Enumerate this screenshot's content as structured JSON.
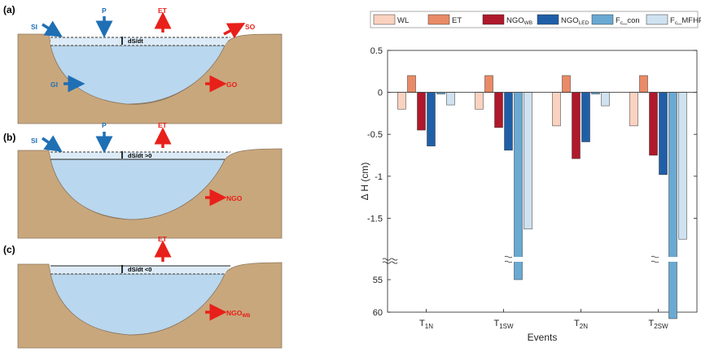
{
  "panels": [
    {
      "id": "a",
      "label": "(a)",
      "storage_label": "dS/dt",
      "fluxes": [
        {
          "name": "SI",
          "color": "#1f6fb5"
        },
        {
          "name": "P",
          "color": "#1f6fb5"
        },
        {
          "name": "ET",
          "color": "#e8201a"
        },
        {
          "name": "SO",
          "color": "#e8201a"
        },
        {
          "name": "GI",
          "color": "#1f6fb5"
        },
        {
          "name": "GO",
          "color": "#e8201a"
        }
      ]
    },
    {
      "id": "b",
      "label": "(b)",
      "storage_label": "dS/dt >0",
      "fluxes": [
        {
          "name": "SI",
          "color": "#1f6fb5"
        },
        {
          "name": "P",
          "color": "#1f6fb5"
        },
        {
          "name": "ET",
          "color": "#e8201a"
        },
        {
          "name": "NGO",
          "color": "#e8201a"
        }
      ]
    },
    {
      "id": "c",
      "label": "(c)",
      "storage_label": "dS/dt <0",
      "fluxes": [
        {
          "name": "ET",
          "color": "#e8201a"
        },
        {
          "name": "NGO",
          "sub": "WB",
          "color": "#e8201a"
        }
      ]
    }
  ],
  "colors": {
    "soil": "#c9a77c",
    "water": "#b9d7ee",
    "water_light": "#dcebf7",
    "blue_arrow": "#1f6fb5",
    "red_arrow": "#e8201a"
  },
  "chart_data": {
    "type": "bar",
    "categories": [
      {
        "main": "T",
        "sub": "1N"
      },
      {
        "main": "T",
        "sub": "1SW"
      },
      {
        "main": "T",
        "sub": "2N"
      },
      {
        "main": "T",
        "sub": "2SW"
      }
    ],
    "series": [
      {
        "name": "WL",
        "color": "#fad2c0",
        "values": [
          -0.2,
          -0.2,
          -0.4,
          -0.4
        ]
      },
      {
        "name": "ET",
        "color": "#ea8a66",
        "values": [
          0.2,
          0.2,
          0.2,
          0.2
        ]
      },
      {
        "name": "NGO",
        "name_sub": "WB",
        "color": "#b0182b",
        "values": [
          -0.45,
          -0.42,
          -0.79,
          -0.75
        ]
      },
      {
        "name": "NGO",
        "name_sub": "LED",
        "color": "#1f5fa8",
        "values": [
          -0.64,
          -0.69,
          -0.59,
          -0.98
        ]
      },
      {
        "name": "F",
        "name_sub": "c",
        "name_suffix": "_con",
        "color": "#69a9d2",
        "values": [
          -0.02,
          -55,
          -0.02,
          -61
        ]
      },
      {
        "name": "F",
        "name_sub": "c",
        "name_suffix": "_MFHP",
        "color": "#cfe2f1",
        "values": [
          -0.15,
          -1.63,
          -0.16,
          -1.75
        ]
      }
    ],
    "ylabel": "Δ H (cm)",
    "xlabel": "Events",
    "upper_axis": {
      "ylim": [
        -2.0,
        0.5
      ],
      "ticks": [
        0.5,
        0,
        -0.5,
        -1,
        -1.5
      ],
      "tick_labels": [
        "0.5",
        "0",
        "-0.5",
        "-1",
        "-1.5"
      ]
    },
    "lower_axis": {
      "ylim": [
        52,
        60
      ],
      "ticks": [
        55,
        60
      ],
      "tick_labels": [
        "55",
        "60"
      ]
    },
    "axis_break": true,
    "legend_position": "top"
  }
}
